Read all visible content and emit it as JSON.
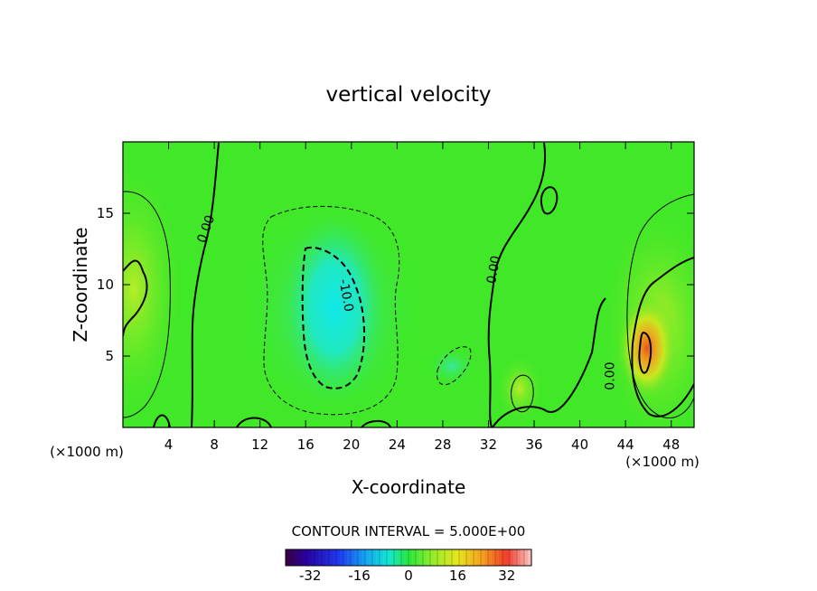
{
  "chart_data": {
    "type": "heatmap",
    "title": "vertical velocity",
    "xlabel": "X-coordinate",
    "ylabel": "Z-coordinate",
    "x_unit": "(×1000 m)",
    "x_unit_right": "(×1000 m)",
    "xlim": [
      0,
      50
    ],
    "ylim": [
      0,
      20
    ],
    "x_ticks": [
      "4",
      "8",
      "12",
      "16",
      "20",
      "24",
      "28",
      "32",
      "36",
      "40",
      "44",
      "48"
    ],
    "y_ticks": [
      "5",
      "10",
      "15"
    ],
    "x_tick_values": [
      4,
      8,
      12,
      16,
      20,
      24,
      28,
      32,
      36,
      40,
      44,
      48
    ],
    "y_tick_values": [
      5,
      10,
      15
    ],
    "contour_interval_text": "CONTOUR INTERVAL = 5.000E+00",
    "contour_labels": [
      {
        "text": "0.00",
        "x": 7.6,
        "z": 13.8,
        "angle": -70
      },
      {
        "text": "-10.0",
        "x": 19.2,
        "z": 9.2,
        "angle": 80
      },
      {
        "text": "0.00",
        "x": 32.8,
        "z": 11.0,
        "angle": -80
      },
      {
        "text": "0.00",
        "x": 43.0,
        "z": 3.6,
        "angle": -90
      }
    ],
    "colorbar": {
      "range": [
        -40,
        40
      ],
      "tick_labels": [
        "-32",
        "-16",
        "0",
        "16",
        "32"
      ],
      "tick_values": [
        -32,
        -16,
        0,
        16,
        32
      ]
    },
    "colors": {
      "field_background": "#40e828",
      "strong_negative": "#10e8e0",
      "weak_negative": "#38e8a0",
      "weak_positive": "#b8ec28",
      "strong_positive": "#f08020"
    }
  }
}
